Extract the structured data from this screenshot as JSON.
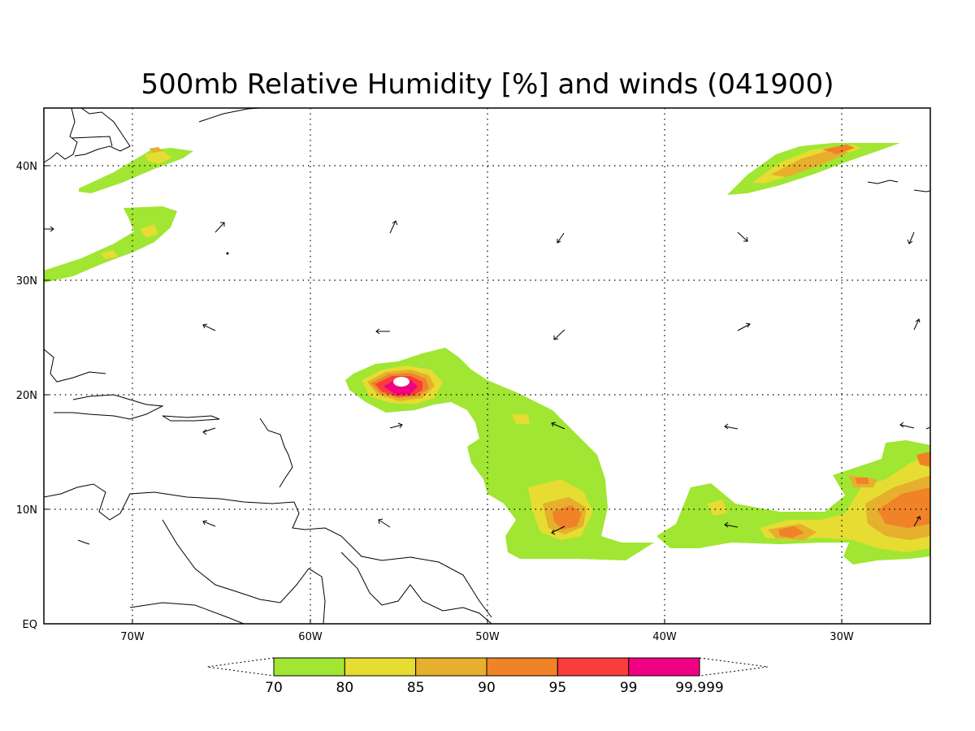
{
  "title": "500mb Relative Humidity [%] and winds (041900)",
  "lon_ticks": [
    "70W",
    "60W",
    "50W",
    "40W",
    "30W"
  ],
  "lat_ticks": [
    "40N",
    "30N",
    "20N",
    "10N",
    "EQ"
  ],
  "colorbar": {
    "levels": [
      "70",
      "80",
      "85",
      "90",
      "95",
      "99",
      "99.999"
    ],
    "colors": [
      "#a0e632",
      "#e6dc32",
      "#e6af2d",
      "#f08228",
      "#fa3c3c",
      "#f00082"
    ]
  },
  "map": {
    "lon_range": [
      -75,
      -25
    ],
    "lat_range": [
      0,
      45
    ],
    "projection": "equirectangular"
  }
}
